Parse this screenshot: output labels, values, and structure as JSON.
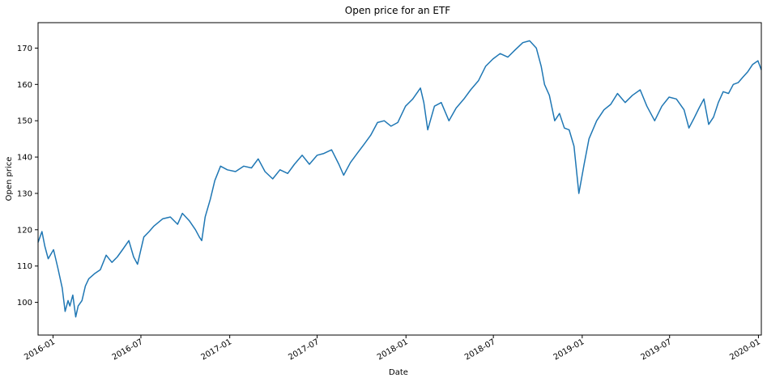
{
  "chart_data": {
    "type": "line",
    "title": "Open price for an ETF",
    "xlabel": "Date",
    "ylabel": "Open price",
    "xlim": [
      "2015-12-01",
      "2020-01-07"
    ],
    "ylim": [
      91,
      177
    ],
    "x_ticks": [
      "2016-01",
      "2016-07",
      "2017-01",
      "2017-07",
      "2018-01",
      "2018-07",
      "2019-01",
      "2019-07",
      "2020-01"
    ],
    "y_ticks": [
      100,
      110,
      120,
      130,
      140,
      150,
      160,
      170
    ],
    "grid": false,
    "legend": "none",
    "series": [
      {
        "color": "#1f77b4",
        "x": [
          "2015-12-01",
          "2015-12-09",
          "2015-12-15",
          "2015-12-22",
          "2016-01-02",
          "2016-01-11",
          "2016-01-20",
          "2016-01-26",
          "2016-02-01",
          "2016-02-05",
          "2016-02-11",
          "2016-02-17",
          "2016-02-22",
          "2016-03-01",
          "2016-03-08",
          "2016-03-15",
          "2016-03-28",
          "2016-04-08",
          "2016-04-20",
          "2016-05-02",
          "2016-05-13",
          "2016-05-24",
          "2016-06-06",
          "2016-06-16",
          "2016-06-24",
          "2016-06-30",
          "2016-07-07",
          "2016-07-18",
          "2016-07-28",
          "2016-08-15",
          "2016-08-31",
          "2016-09-15",
          "2016-09-25",
          "2016-10-09",
          "2016-10-22",
          "2016-10-30",
          "2016-11-04",
          "2016-11-11",
          "2016-11-22",
          "2016-12-01",
          "2016-12-13",
          "2016-12-27",
          "2017-01-13",
          "2017-01-30",
          "2017-02-15",
          "2017-03-01",
          "2017-03-15",
          "2017-03-31",
          "2017-04-15",
          "2017-05-01",
          "2017-05-15",
          "2017-05-31",
          "2017-06-15",
          "2017-07-01",
          "2017-07-15",
          "2017-07-31",
          "2017-08-15",
          "2017-08-25",
          "2017-09-08",
          "2017-09-22",
          "2017-10-06",
          "2017-10-20",
          "2017-11-03",
          "2017-11-17",
          "2017-12-01",
          "2017-12-15",
          "2017-12-31",
          "2018-01-15",
          "2018-01-31",
          "2018-02-07",
          "2018-02-15",
          "2018-03-01",
          "2018-03-15",
          "2018-03-31",
          "2018-04-15",
          "2018-05-01",
          "2018-05-15",
          "2018-05-31",
          "2018-06-15",
          "2018-06-30",
          "2018-07-15",
          "2018-07-31",
          "2018-08-15",
          "2018-08-31",
          "2018-09-14",
          "2018-09-28",
          "2018-10-08",
          "2018-10-15",
          "2018-10-25",
          "2018-11-05",
          "2018-11-15",
          "2018-11-25",
          "2018-12-05",
          "2018-12-15",
          "2018-12-25",
          "2019-01-05",
          "2019-01-15",
          "2019-01-31",
          "2019-02-15",
          "2019-03-01",
          "2019-03-15",
          "2019-03-31",
          "2019-04-15",
          "2019-05-01",
          "2019-05-15",
          "2019-05-31",
          "2019-06-15",
          "2019-06-30",
          "2019-07-15",
          "2019-07-31",
          "2019-08-10",
          "2019-08-20",
          "2019-08-31",
          "2019-09-10",
          "2019-09-20",
          "2019-09-30",
          "2019-10-10",
          "2019-10-20",
          "2019-10-31",
          "2019-11-10",
          "2019-11-20",
          "2019-11-30",
          "2019-12-10",
          "2019-12-20",
          "2019-12-31",
          "2020-01-07"
        ],
        "y": [
          116.5,
          119.5,
          115.5,
          112.0,
          114.5,
          109.5,
          104.0,
          97.5,
          100.5,
          99.0,
          102.0,
          96.0,
          99.0,
          100.5,
          104.5,
          106.5,
          108.0,
          109.0,
          113.0,
          111.0,
          112.5,
          114.5,
          117.0,
          112.5,
          110.5,
          114.0,
          118.0,
          119.5,
          121.0,
          123.0,
          123.5,
          121.5,
          124.5,
          122.5,
          120.0,
          118.0,
          117.0,
          123.5,
          128.5,
          133.5,
          137.5,
          136.5,
          136.0,
          137.5,
          137.0,
          139.5,
          136.0,
          134.0,
          136.5,
          135.5,
          138.0,
          140.5,
          138.0,
          140.5,
          141.0,
          142.0,
          138.0,
          135.0,
          138.5,
          141.0,
          143.5,
          146.0,
          149.5,
          150.0,
          148.5,
          149.5,
          154.0,
          156.0,
          159.0,
          155.0,
          147.5,
          154.0,
          155.0,
          150.0,
          153.5,
          156.0,
          158.5,
          161.0,
          165.0,
          167.0,
          168.5,
          167.5,
          169.5,
          171.5,
          172.0,
          170.0,
          165.0,
          160.0,
          157.0,
          150.0,
          152.0,
          148.0,
          147.5,
          143.0,
          130.0,
          138.0,
          145.0,
          150.0,
          153.0,
          154.5,
          157.5,
          155.0,
          157.0,
          158.5,
          154.0,
          150.0,
          154.0,
          156.5,
          156.0,
          153.0,
          148.0,
          150.5,
          153.5,
          156.0,
          149.0,
          151.0,
          155.0,
          158.0,
          157.5,
          160.0,
          160.5,
          162.0,
          163.5,
          165.5,
          166.5,
          164.0
        ]
      }
    ]
  }
}
